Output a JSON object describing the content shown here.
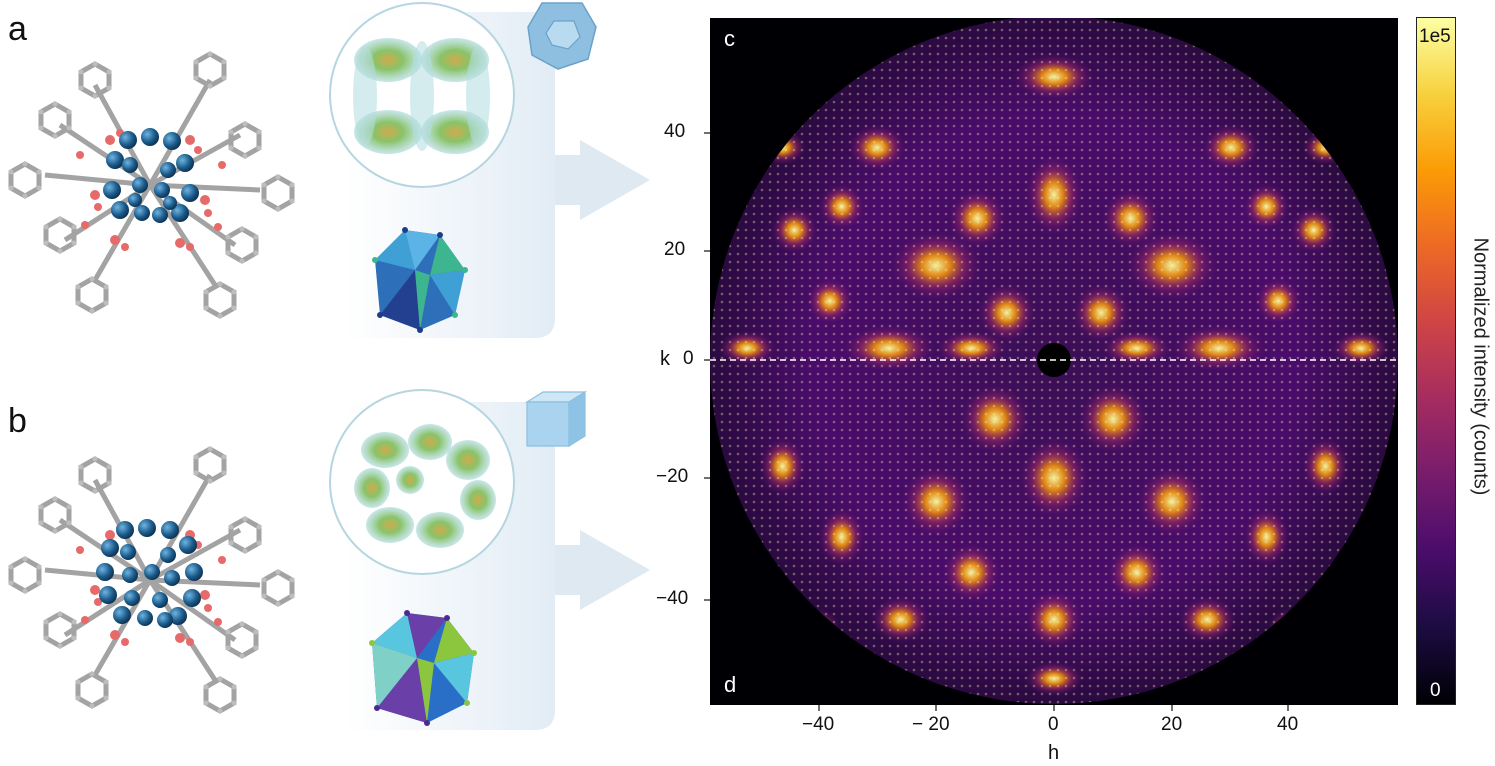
{
  "panels": {
    "a": "a",
    "b": "b",
    "c": "c",
    "d": "d"
  },
  "axes": {
    "xlabel": "h",
    "ylabel": "k",
    "xticks": [
      "−40",
      "− 20",
      "0",
      "20",
      "40"
    ],
    "yticks": [
      "40",
      "20",
      "0",
      "−20",
      "−40"
    ]
  },
  "colorbar": {
    "label": "Normalized intensity (counts)",
    "max_label": "1e5",
    "min_label": "0",
    "colors": [
      "#000004",
      "#1b0c41",
      "#4a0c6b",
      "#781c6d",
      "#a52c60",
      "#cf4446",
      "#ed6925",
      "#fb9b06",
      "#f7d13d",
      "#fcffa4"
    ]
  },
  "chart_data": {
    "type": "heatmap",
    "title": "",
    "xlabel": "h",
    "ylabel": "k",
    "xlim": [
      -58,
      58
    ],
    "ylim": [
      -57,
      58
    ],
    "xticks": [
      -40,
      -20,
      0,
      20,
      40
    ],
    "yticks": [
      -40,
      -20,
      0,
      20,
      40
    ],
    "colorbar_range": [
      0,
      100000
    ],
    "colormap": "inferno",
    "divider": "dashed white line at k = 0; upper half c, lower half d"
  },
  "illustration": {
    "ligand_color": "#a3a3a3",
    "oxygen_color": "#e66a6a",
    "metal_color": "#1c5c8c",
    "density_color": "#7dbd5a",
    "cluster_a_colors": [
      "#2d6fb8",
      "#3fa0d6",
      "#3db58e",
      "#233f8f"
    ],
    "cluster_b_colors": [
      "#2a6fc7",
      "#58c6df",
      "#8cc63f",
      "#6a3fa8"
    ]
  }
}
